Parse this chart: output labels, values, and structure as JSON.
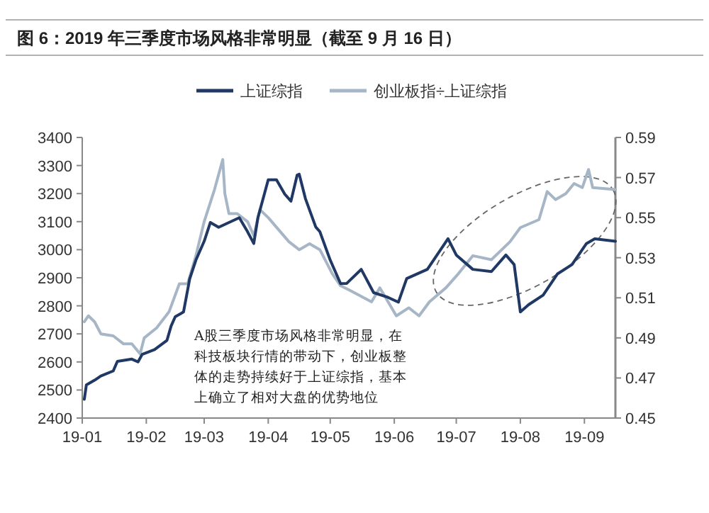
{
  "chart_data": {
    "type": "line",
    "title": "图 6：2019 年三季度市场风格非常明显（截至 9 月 16 日）",
    "legend": "top",
    "grid": false,
    "xlim": [
      "2019-01-01",
      "2019-09-16"
    ],
    "xticks": [
      {
        "value": "2019-01-01",
        "label": "19-01"
      },
      {
        "value": "2019-02-01",
        "label": "19-02"
      },
      {
        "value": "2019-03-01",
        "label": "19-03"
      },
      {
        "value": "2019-04-01",
        "label": "19-04"
      },
      {
        "value": "2019-05-01",
        "label": "19-05"
      },
      {
        "value": "2019-06-01",
        "label": "19-06"
      },
      {
        "value": "2019-07-01",
        "label": "19-07"
      },
      {
        "value": "2019-08-01",
        "label": "19-08"
      },
      {
        "value": "2019-09-01",
        "label": "19-09"
      }
    ],
    "ylim": [
      2400,
      3400
    ],
    "yticks": [
      2400,
      2500,
      2600,
      2700,
      2800,
      2900,
      3000,
      3100,
      3200,
      3300,
      3400
    ],
    "y2lim": [
      0.45,
      0.59
    ],
    "y2ticks": [
      0.45,
      0.47,
      0.49,
      0.51,
      0.53,
      0.55,
      0.57,
      0.59
    ],
    "series": [
      {
        "name": "上证综指",
        "color": "#1f3864",
        "x": [
          "2019-01-02",
          "2019-01-03",
          "2019-01-07",
          "2019-01-10",
          "2019-01-16",
          "2019-01-18",
          "2019-01-25",
          "2019-01-28",
          "2019-01-30",
          "2019-02-05",
          "2019-02-11",
          "2019-02-13",
          "2019-02-15",
          "2019-02-19",
          "2019-02-22",
          "2019-02-25",
          "2019-03-01",
          "2019-03-04",
          "2019-03-08",
          "2019-03-13",
          "2019-03-18",
          "2019-03-22",
          "2019-03-25",
          "2019-03-27",
          "2019-04-01",
          "2019-04-05",
          "2019-04-09",
          "2019-04-12",
          "2019-04-15",
          "2019-04-16",
          "2019-04-19",
          "2019-04-24",
          "2019-04-26",
          "2019-05-01",
          "2019-05-06",
          "2019-05-09",
          "2019-05-16",
          "2019-05-22",
          "2019-05-29",
          "2019-06-03",
          "2019-06-07",
          "2019-06-17",
          "2019-06-27",
          "2019-07-01",
          "2019-07-09",
          "2019-07-18",
          "2019-07-25",
          "2019-07-29",
          "2019-08-01",
          "2019-08-05",
          "2019-08-12",
          "2019-08-19",
          "2019-08-26",
          "2019-09-02",
          "2019-09-06",
          "2019-09-16"
        ],
        "values": [
          2467,
          2518,
          2535,
          2550,
          2568,
          2602,
          2610,
          2600,
          2627,
          2644,
          2677,
          2728,
          2761,
          2778,
          2896,
          2963,
          3030,
          3097,
          3080,
          3097,
          3114,
          3064,
          3022,
          3114,
          3249,
          3249,
          3198,
          3173,
          3266,
          3269,
          3182,
          3081,
          3064,
          2963,
          2879,
          2880,
          2930,
          2847,
          2830,
          2813,
          2897,
          2930,
          3039,
          2981,
          2930,
          2922,
          2981,
          2947,
          2778,
          2804,
          2838,
          2914,
          2947,
          3022,
          3039,
          3030
        ]
      },
      {
        "name": "创业板指÷上证综指",
        "color": "#a7b6c6",
        "axis": "y2",
        "x": [
          "2019-01-02",
          "2019-01-04",
          "2019-01-07",
          "2019-01-10",
          "2019-01-16",
          "2019-01-21",
          "2019-01-25",
          "2019-01-29",
          "2019-01-31",
          "2019-02-06",
          "2019-02-12",
          "2019-02-17",
          "2019-02-21",
          "2019-02-25",
          "2019-03-01",
          "2019-03-06",
          "2019-03-10",
          "2019-03-11",
          "2019-03-13",
          "2019-03-17",
          "2019-03-22",
          "2019-03-25",
          "2019-03-28",
          "2019-04-01",
          "2019-04-06",
          "2019-04-11",
          "2019-04-16",
          "2019-04-21",
          "2019-04-26",
          "2019-05-02",
          "2019-05-06",
          "2019-05-10",
          "2019-05-21",
          "2019-05-25",
          "2019-06-02",
          "2019-06-08",
          "2019-06-13",
          "2019-06-18",
          "2019-06-26",
          "2019-07-02",
          "2019-07-09",
          "2019-07-18",
          "2019-07-27",
          "2019-08-01",
          "2019-08-10",
          "2019-08-14",
          "2019-08-18",
          "2019-08-23",
          "2019-08-27",
          "2019-08-31",
          "2019-09-03",
          "2019-09-05",
          "2019-09-16"
        ],
        "values": [
          0.498,
          0.501,
          0.498,
          0.492,
          0.491,
          0.487,
          0.487,
          0.482,
          0.49,
          0.495,
          0.503,
          0.517,
          0.517,
          0.531,
          0.548,
          0.564,
          0.579,
          0.562,
          0.552,
          0.552,
          0.548,
          0.541,
          0.554,
          0.55,
          0.544,
          0.538,
          0.534,
          0.537,
          0.534,
          0.522,
          0.516,
          0.514,
          0.508,
          0.515,
          0.501,
          0.505,
          0.501,
          0.508,
          0.515,
          0.522,
          0.531,
          0.529,
          0.538,
          0.545,
          0.549,
          0.563,
          0.559,
          0.562,
          0.567,
          0.565,
          0.574,
          0.565,
          0.564
        ]
      }
    ],
    "annotations": [
      "A股三季度市场风格非常明显，在科技板块行情的带动下，创业板整体的走势持续好于上证综指，基本上确立了相对大盘的优势地位"
    ]
  }
}
